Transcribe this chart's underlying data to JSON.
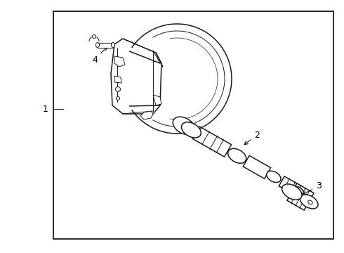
{
  "background_color": "#ffffff",
  "border_color": "#1a1a1a",
  "line_color": "#1a1a1a",
  "label_color": "#000000",
  "border": [
    0.155,
    0.055,
    0.815,
    0.9
  ],
  "figsize": [
    4.9,
    3.6
  ],
  "dpi": 100
}
